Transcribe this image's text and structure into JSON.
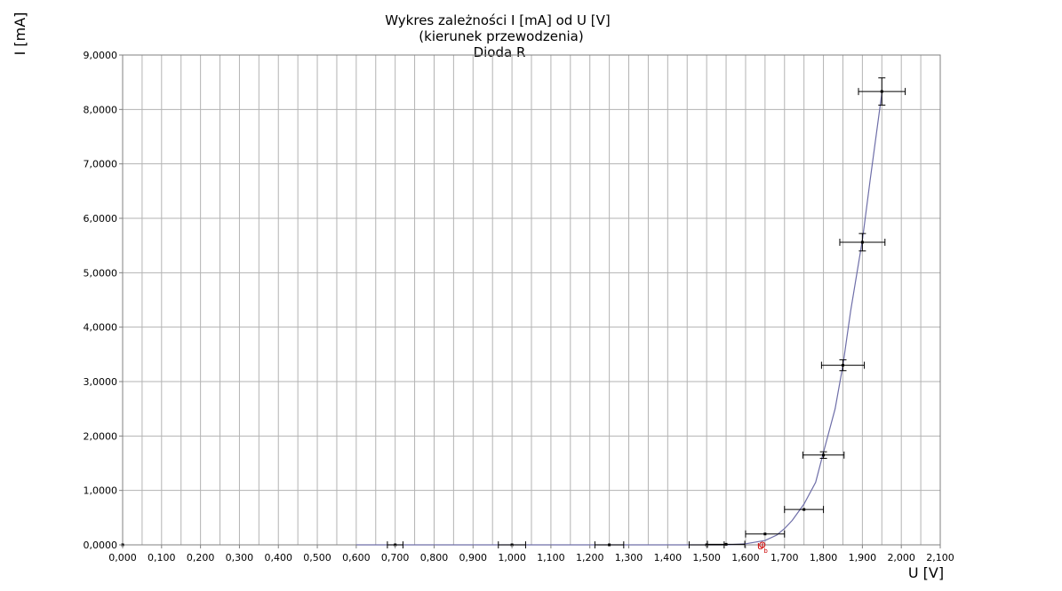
{
  "chart_data": {
    "type": "scatter",
    "title_lines": [
      "Wykres zależności I [mA] od U [V]",
      "(kierunek przewodzenia)",
      "Dioda R"
    ],
    "xlabel": "U [V]",
    "ylabel": "I [mA]",
    "xlim": [
      0,
      2.1
    ],
    "ylim": [
      0,
      9
    ],
    "x_ticks": [
      "0,000",
      "0,100",
      "0,200",
      "0,300",
      "0,400",
      "0,500",
      "0,600",
      "0,700",
      "0,800",
      "0,900",
      "1,000",
      "1,100",
      "1,200",
      "1,300",
      "1,400",
      "1,500",
      "1,600",
      "1,700",
      "1,800",
      "1,900",
      "2,000",
      "2,100"
    ],
    "y_ticks": [
      "0,0000",
      "1,0000",
      "2,0000",
      "3,0000",
      "4,0000",
      "5,0000",
      "6,0000",
      "7,0000",
      "8,0000",
      "9,0000"
    ],
    "grid": true,
    "annotation": "Ub",
    "series": [
      {
        "points": [
          {
            "x": 0.0,
            "y": 0.0
          },
          {
            "x": 0.7,
            "y": 0.0,
            "xerr": 0.02
          },
          {
            "x": 1.0,
            "y": 0.0,
            "xerr": 0.035
          },
          {
            "x": 1.25,
            "y": 0.0,
            "xerr": 0.037
          },
          {
            "x": 1.5,
            "y": 0.0,
            "xerr": 0.045
          },
          {
            "x": 1.55,
            "y": 0.01,
            "xerr": 0.048
          },
          {
            "x": 1.65,
            "y": 0.2,
            "xerr": 0.05
          },
          {
            "x": 1.75,
            "y": 0.65,
            "xerr": 0.05
          },
          {
            "x": 1.8,
            "y": 1.65,
            "xerr": 0.053,
            "yerr": 0.06
          },
          {
            "x": 1.85,
            "y": 3.3,
            "xerr": 0.055,
            "yerr": 0.1
          },
          {
            "x": 1.9,
            "y": 5.56,
            "xerr": 0.058,
            "yerr": 0.16
          },
          {
            "x": 1.95,
            "y": 8.33,
            "xerr": 0.06,
            "yerr": 0.25
          }
        ]
      }
    ],
    "curve": {
      "x": [
        0.6,
        1.0,
        1.4,
        1.55,
        1.6,
        1.65,
        1.68,
        1.7,
        1.72,
        1.75,
        1.78,
        1.8,
        1.83,
        1.85,
        1.87,
        1.9,
        1.92,
        1.95
      ],
      "y": [
        0.0,
        0.0,
        0.0,
        0.0,
        0.02,
        0.08,
        0.18,
        0.3,
        0.45,
        0.75,
        1.15,
        1.7,
        2.5,
        3.3,
        4.3,
        5.6,
        6.7,
        8.3
      ]
    },
    "colors": {
      "curve": "#6e6ea8",
      "grid": "#b3b3b3",
      "annotation": "#cc0000"
    }
  }
}
